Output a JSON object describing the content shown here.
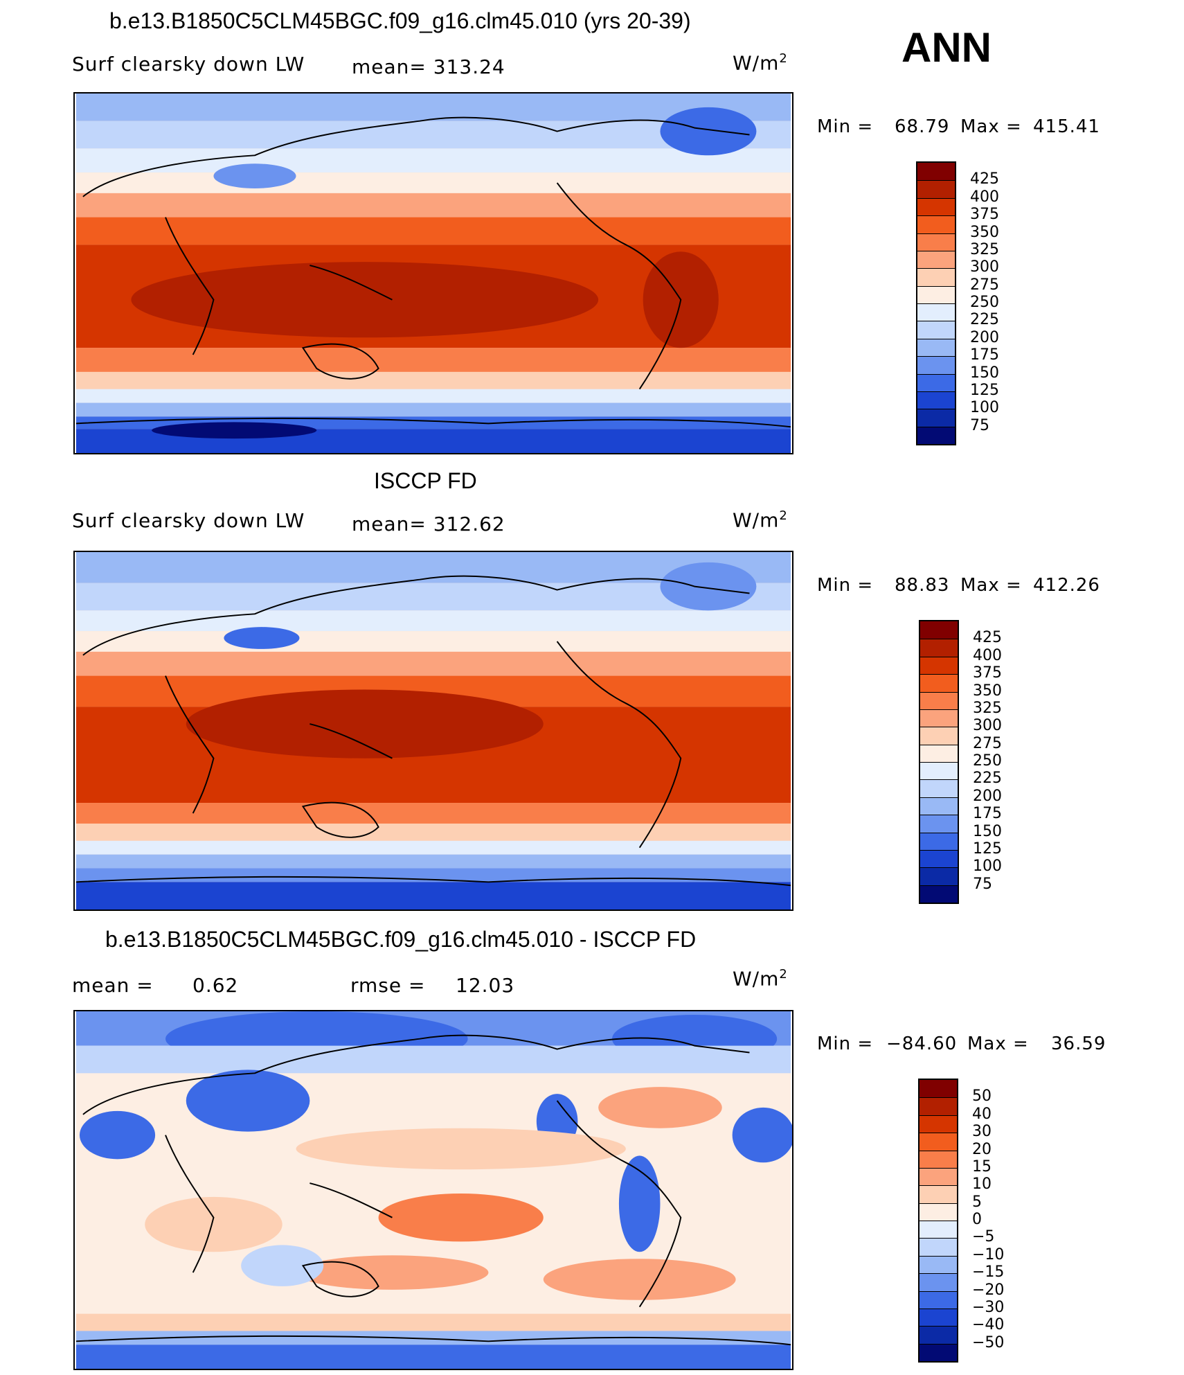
{
  "season": "ANN",
  "units": "W/m",
  "units_sup": "2",
  "panels": [
    {
      "title": "b.e13.B1850C5CLM45BGC.f09_g16.clm45.010 (yrs 20-39)",
      "variable": "Surf clearsky down LW",
      "mean_text": "mean= 313.24",
      "min_label": "Min =",
      "min_value": "68.79",
      "max_label": "Max =",
      "max_value": "415.41"
    },
    {
      "title": "ISCCP FD",
      "variable": "Surf clearsky down LW",
      "mean_text": "mean= 312.62",
      "min_label": "Min =",
      "min_value": "88.83",
      "max_label": "Max =",
      "max_value": "412.26"
    },
    {
      "title": "b.e13.B1850C5CLM45BGC.f09_g16.clm45.010 - ISCCP FD",
      "mean_label": "mean =",
      "mean_value": "0.62",
      "rmse_label": "rmse =",
      "rmse_value": "12.03",
      "min_label": "Min =",
      "min_value": "−84.60",
      "max_label": "Max =",
      "max_value": "36.59"
    }
  ],
  "colorbars": {
    "abs_labels": [
      "425",
      "400",
      "375",
      "350",
      "325",
      "300",
      "275",
      "250",
      "225",
      "200",
      "175",
      "150",
      "125",
      "100",
      "75"
    ],
    "diff_labels": [
      "50",
      "40",
      "30",
      "20",
      "15",
      "10",
      "5",
      "0",
      "−5",
      "−10",
      "−15",
      "−20",
      "−30",
      "−40",
      "−50"
    ],
    "colors": [
      "#800000",
      "#b22000",
      "#d53500",
      "#f25d1e",
      "#f97e4a",
      "#fba37d",
      "#fdd0b4",
      "#fdeee3",
      "#e3eefd",
      "#c1d6fb",
      "#99b9f5",
      "#6b93ef",
      "#3c6ae6",
      "#1b44d1",
      "#0b2aa6",
      "#020a74"
    ]
  }
}
